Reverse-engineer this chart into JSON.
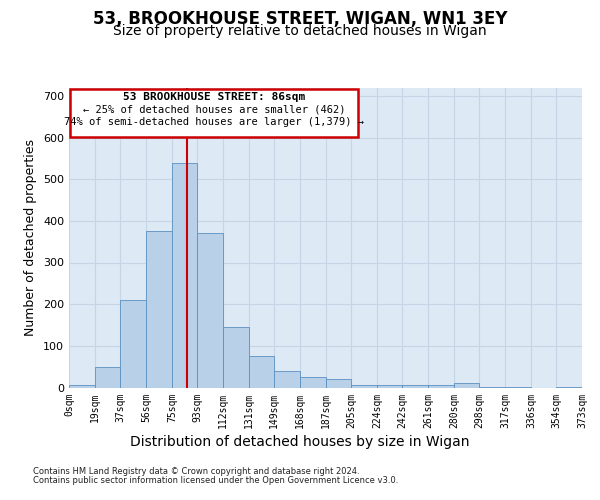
{
  "title1": "53, BROOKHOUSE STREET, WIGAN, WN1 3EY",
  "title2": "Size of property relative to detached houses in Wigan",
  "xlabel": "Distribution of detached houses by size in Wigan",
  "ylabel": "Number of detached properties",
  "footnote1": "Contains HM Land Registry data © Crown copyright and database right 2024.",
  "footnote2": "Contains public sector information licensed under the Open Government Licence v3.0.",
  "annotation_line1": "53 BROOKHOUSE STREET: 86sqm",
  "annotation_line2": "← 25% of detached houses are smaller (462)",
  "annotation_line3": "74% of semi-detached houses are larger (1,379) →",
  "red_line_x": 86,
  "bin_edges": [
    0,
    19,
    37,
    56,
    75,
    93,
    112,
    131,
    149,
    168,
    187,
    205,
    224,
    242,
    261,
    280,
    298,
    317,
    336,
    354,
    373
  ],
  "bar_heights": [
    5,
    50,
    210,
    375,
    540,
    370,
    145,
    75,
    40,
    25,
    20,
    5,
    5,
    5,
    5,
    10,
    2,
    2,
    0,
    2
  ],
  "bar_color": "#b8d0e8",
  "bar_edge_color": "#5a90c0",
  "red_line_color": "#cc0000",
  "grid_color": "#c5d5e5",
  "background_color": "#ddeaf5",
  "ylim": [
    0,
    720
  ],
  "yticks": [
    0,
    100,
    200,
    300,
    400,
    500,
    600,
    700
  ],
  "annotation_box_color": "#ffffff",
  "annotation_box_edge": "#cc0000"
}
